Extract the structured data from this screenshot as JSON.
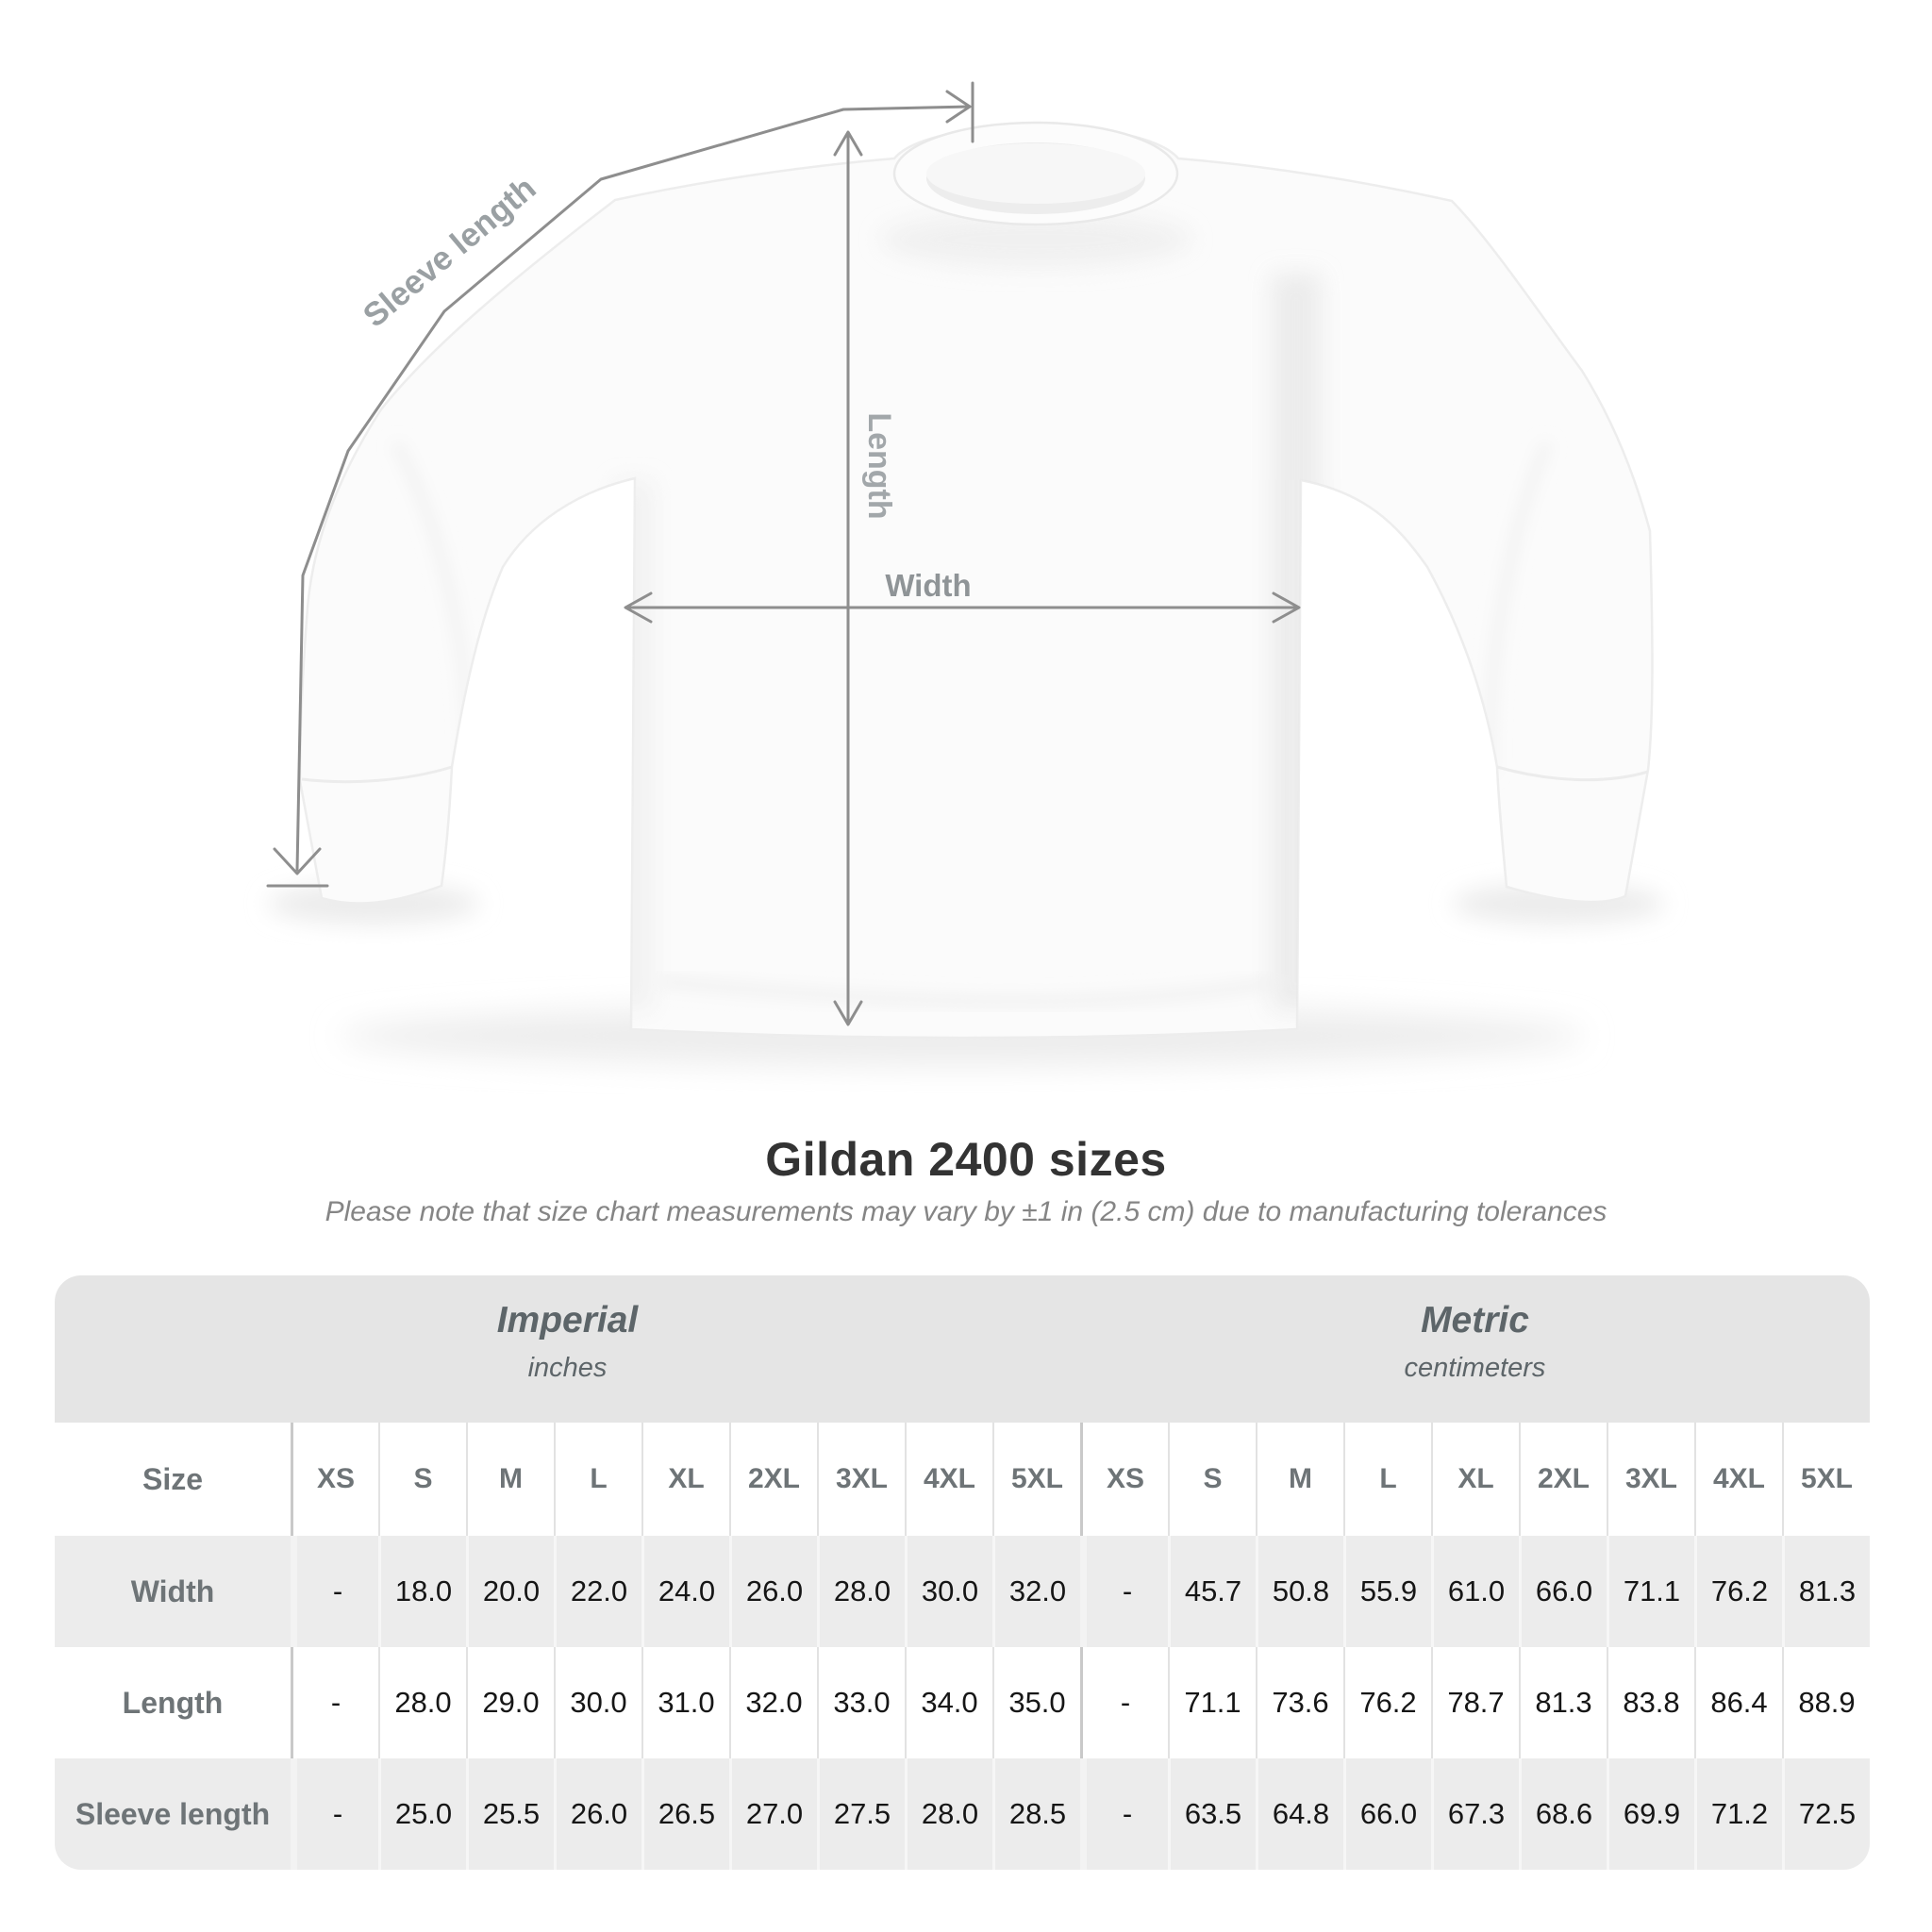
{
  "header": {
    "title": "Gildan 2400 sizes",
    "subtitle": "Please note that size chart measurements may vary by ±1 in (2.5 cm) due to manufacturing tolerances"
  },
  "diagram": {
    "sleeve_length_label": "Sleeve length",
    "length_label": "Length",
    "width_label": "Width"
  },
  "table": {
    "unit_groups": [
      {
        "label": "Imperial",
        "sublabel": "inches"
      },
      {
        "label": "Metric",
        "sublabel": "centimeters"
      }
    ],
    "size_header": "Size",
    "sizes": [
      "XS",
      "S",
      "M",
      "L",
      "XL",
      "2XL",
      "3XL",
      "4XL",
      "5XL"
    ],
    "rows": [
      {
        "label": "Width",
        "imperial": [
          "-",
          "18.0",
          "20.0",
          "22.0",
          "24.0",
          "26.0",
          "28.0",
          "30.0",
          "32.0"
        ],
        "metric": [
          "-",
          "45.7",
          "50.8",
          "55.9",
          "61.0",
          "66.0",
          "71.1",
          "76.2",
          "81.3"
        ]
      },
      {
        "label": "Length",
        "imperial": [
          "-",
          "28.0",
          "29.0",
          "30.0",
          "31.0",
          "32.0",
          "33.0",
          "34.0",
          "35.0"
        ],
        "metric": [
          "-",
          "71.1",
          "73.6",
          "76.2",
          "78.7",
          "81.3",
          "83.8",
          "86.4",
          "88.9"
        ]
      },
      {
        "label": "Sleeve length",
        "imperial": [
          "-",
          "25.0",
          "25.5",
          "26.0",
          "26.5",
          "27.0",
          "27.5",
          "28.0",
          "28.5"
        ],
        "metric": [
          "-",
          "63.5",
          "64.8",
          "66.0",
          "67.3",
          "68.6",
          "69.9",
          "71.2",
          "72.5"
        ]
      }
    ]
  },
  "chart_data": {
    "type": "table",
    "title": "Gildan 2400 sizes",
    "units": [
      "inches",
      "centimeters"
    ],
    "sizes": [
      "XS",
      "S",
      "M",
      "L",
      "XL",
      "2XL",
      "3XL",
      "4XL",
      "5XL"
    ],
    "rows": [
      {
        "measure": "Width",
        "inches": [
          null,
          18.0,
          20.0,
          22.0,
          24.0,
          26.0,
          28.0,
          30.0,
          32.0
        ],
        "centimeters": [
          null,
          45.7,
          50.8,
          55.9,
          61.0,
          66.0,
          71.1,
          76.2,
          81.3
        ]
      },
      {
        "measure": "Length",
        "inches": [
          null,
          28.0,
          29.0,
          30.0,
          31.0,
          32.0,
          33.0,
          34.0,
          35.0
        ],
        "centimeters": [
          null,
          71.1,
          73.6,
          76.2,
          78.7,
          81.3,
          83.8,
          86.4,
          88.9
        ]
      },
      {
        "measure": "Sleeve length",
        "inches": [
          null,
          25.0,
          25.5,
          26.0,
          26.5,
          27.0,
          27.5,
          28.0,
          28.5
        ],
        "centimeters": [
          null,
          63.5,
          64.8,
          66.0,
          67.3,
          68.6,
          69.9,
          71.2,
          72.5
        ]
      }
    ]
  },
  "colors": {
    "measurement_line": "#8e8e8e",
    "measurement_label": "#989da0",
    "band_bg": "#e5e5e5",
    "stripe_bg": "#ececec",
    "label_text": "#6e7477",
    "value_text": "#161616",
    "title_text": "#333333",
    "subtitle_text": "#858585"
  }
}
